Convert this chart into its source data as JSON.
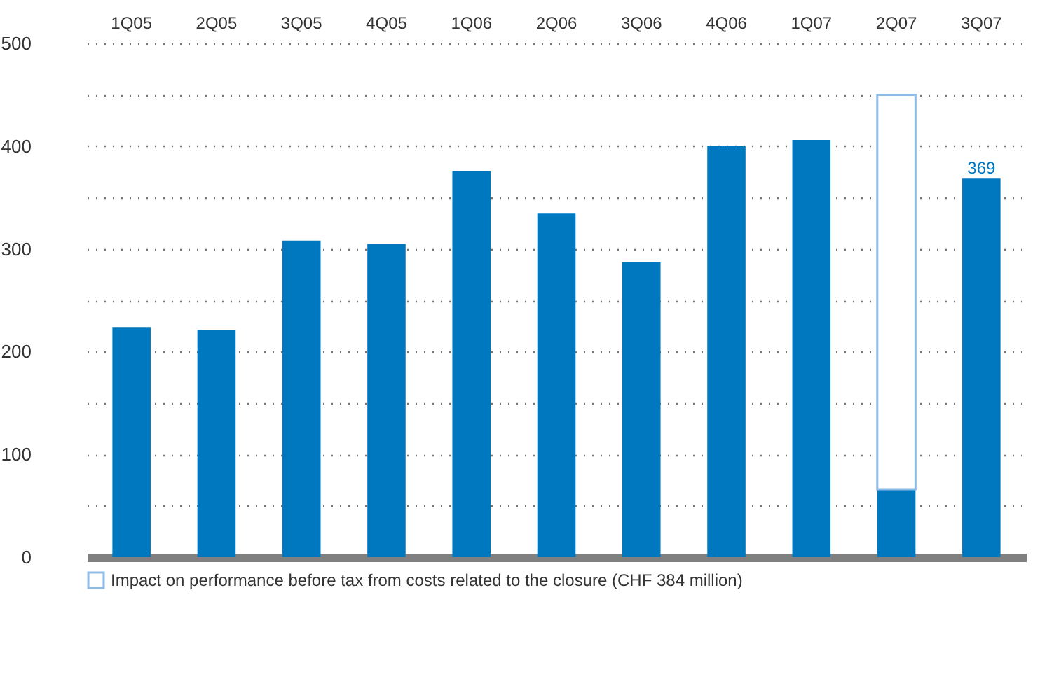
{
  "chart_data": {
    "type": "bar",
    "stacked": true,
    "categories": [
      "1Q05",
      "2Q05",
      "3Q05",
      "4Q05",
      "1Q06",
      "2Q06",
      "3Q06",
      "4Q06",
      "1Q07",
      "2Q07",
      "3Q07"
    ],
    "series": [
      {
        "color": "#0078c0",
        "values": [
          224,
          221,
          308,
          305,
          376,
          335,
          287,
          400,
          406,
          66,
          369
        ],
        "value_labels": [
          null,
          null,
          null,
          null,
          null,
          null,
          null,
          null,
          null,
          null,
          "369"
        ]
      },
      {
        "name": "Impact on performance before tax from costs related to the closure (CHF 384 million)",
        "color": "#8fbce6",
        "values": [
          null,
          null,
          null,
          null,
          null,
          null,
          null,
          null,
          null,
          384,
          null
        ]
      }
    ],
    "ylim": [
      0,
      500
    ],
    "yticks": [
      0,
      {
        "value": 50,
        "label": null
      },
      100,
      {
        "value": 150,
        "label": null
      },
      200,
      {
        "value": 250,
        "label": null
      },
      300,
      {
        "value": 350,
        "label": null
      },
      400,
      {
        "value": 450,
        "label": null
      },
      500
    ],
    "grid": "y",
    "legend": "bottom left"
  }
}
